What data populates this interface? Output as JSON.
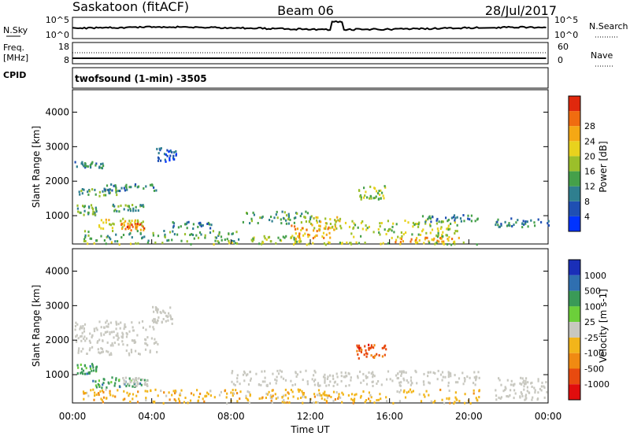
{
  "header": {
    "station": "Saskatoon (fitACF)",
    "beam": "Beam 06",
    "date": "28/Jul/2017"
  },
  "top_panels": {
    "nsky_label": "N.Sky",
    "nsky_ticks": [
      "10^5",
      "10^0"
    ],
    "nsearch_label": "N.Search",
    "nsearch_ticks": [
      "10^5",
      "10^0"
    ],
    "freq_label": "Freq.",
    "freq_unit": "[MHz]",
    "freq_ticks": [
      "18",
      "8"
    ],
    "nave_label": "Nave",
    "nave_ticks": [
      "60",
      "0"
    ],
    "cpid_label": "CPID",
    "cpid_text": "twofsound (1-min) -3505"
  },
  "axes": {
    "ylabel": "Slant Range [km]",
    "y_ticks": [
      "1000",
      "2000",
      "3000",
      "4000"
    ],
    "y_range_km": [
      180,
      4650
    ],
    "x_ticks": [
      "00:00",
      "04:00",
      "08:00",
      "12:00",
      "16:00",
      "20:00",
      "00:00"
    ],
    "xlabel": "Time UT",
    "x_range_hours": [
      0,
      24
    ],
    "data_gap_hours": [
      20.6,
      21.3
    ]
  },
  "power_colorbar": {
    "label": "Power [dB]",
    "ticks": [
      "4",
      "8",
      "12",
      "16",
      "20",
      "24",
      "28"
    ],
    "colors": [
      "#0033ff",
      "#1f4fb3",
      "#2f7f8f",
      "#45a04a",
      "#9bbf2a",
      "#e8d21d",
      "#f5a814",
      "#f06c10",
      "#e0280d"
    ]
  },
  "velocity_colorbar": {
    "label": "Velocity [m s-1]",
    "ticks": [
      "1000",
      "500",
      "100",
      "25",
      "-25",
      "-100",
      "-500",
      "-1000"
    ],
    "colors": [
      "#1a2fb8",
      "#2f6fb0",
      "#3a9a57",
      "#6ccf3a",
      "#c8c8c0",
      "#f2b51a",
      "#f08a12",
      "#e84a0f",
      "#e00d0d"
    ]
  },
  "chart_data": {
    "type": "heatmap",
    "x_unit": "hours UT",
    "y_unit": "km",
    "power_patches": [
      {
        "t": [
          0.1,
          1.6
        ],
        "r": [
          2400,
          2600
        ],
        "level": 2
      },
      {
        "t": [
          0.3,
          2.4
        ],
        "r": [
          1600,
          1800
        ],
        "level": 3
      },
      {
        "t": [
          1.5,
          4.2
        ],
        "r": [
          1750,
          1950
        ],
        "level": 2
      },
      {
        "t": [
          0.1,
          1.2
        ],
        "r": [
          1050,
          1350
        ],
        "level": 3
      },
      {
        "t": [
          2.0,
          3.6
        ],
        "r": [
          1150,
          1350
        ],
        "level": 3
      },
      {
        "t": [
          1.0,
          3.6
        ],
        "r": [
          650,
          950
        ],
        "level": 5
      },
      {
        "t": [
          2.4,
          3.6
        ],
        "r": [
          600,
          800
        ],
        "level": 7
      },
      {
        "t": [
          4.2,
          5.2
        ],
        "r": [
          2600,
          3000
        ],
        "level": 1
      },
      {
        "t": [
          0.5,
          8.5
        ],
        "r": [
          280,
          600
        ],
        "level": 3
      },
      {
        "t": [
          5.0,
          7.0
        ],
        "r": [
          650,
          850
        ],
        "level": 2
      },
      {
        "t": [
          8.5,
          12.5
        ],
        "r": [
          800,
          1150
        ],
        "level": 3
      },
      {
        "t": [
          9.0,
          11.5
        ],
        "r": [
          250,
          450
        ],
        "level": 4
      },
      {
        "t": [
          11.0,
          13.0
        ],
        "r": [
          350,
          750
        ],
        "level": 6
      },
      {
        "t": [
          12.0,
          13.5
        ],
        "r": [
          600,
          1000
        ],
        "level": 5
      },
      {
        "t": [
          13.5,
          19.5
        ],
        "r": [
          400,
          900
        ],
        "level": 4
      },
      {
        "t": [
          16.0,
          19.5
        ],
        "r": [
          230,
          400
        ],
        "level": 6
      },
      {
        "t": [
          14.3,
          15.8
        ],
        "r": [
          1500,
          1900
        ],
        "level": 4
      },
      {
        "t": [
          17.5,
          20.5
        ],
        "r": [
          850,
          1050
        ],
        "level": 2
      },
      {
        "t": [
          21.3,
          24.0
        ],
        "r": [
          700,
          950
        ],
        "level": 2
      },
      {
        "t": [
          0.0,
          20.5
        ],
        "r": [
          190,
          260
        ],
        "level": 4
      }
    ],
    "velocity_patches": [
      {
        "t": [
          0.1,
          4.3
        ],
        "r": [
          1600,
          2600
        ],
        "vel": "gs"
      },
      {
        "t": [
          4.0,
          5.0
        ],
        "r": [
          2500,
          3000
        ],
        "vel": "gs"
      },
      {
        "t": [
          0.2,
          1.2
        ],
        "r": [
          1050,
          1350
        ],
        "vel": "+100"
      },
      {
        "t": [
          1.0,
          3.8
        ],
        "r": [
          650,
          950
        ],
        "vel": "+100"
      },
      {
        "t": [
          2.5,
          3.8
        ],
        "r": [
          700,
          950
        ],
        "vel": "gs"
      },
      {
        "t": [
          8.0,
          20.5
        ],
        "r": [
          700,
          1150
        ],
        "vel": "gs"
      },
      {
        "t": [
          0.5,
          20.5
        ],
        "r": [
          200,
          600
        ],
        "vel": "-25"
      },
      {
        "t": [
          14.3,
          15.8
        ],
        "r": [
          1500,
          1900
        ],
        "vel": "-500"
      },
      {
        "t": [
          21.3,
          24.0
        ],
        "r": [
          300,
          950
        ],
        "vel": "gs"
      }
    ]
  }
}
